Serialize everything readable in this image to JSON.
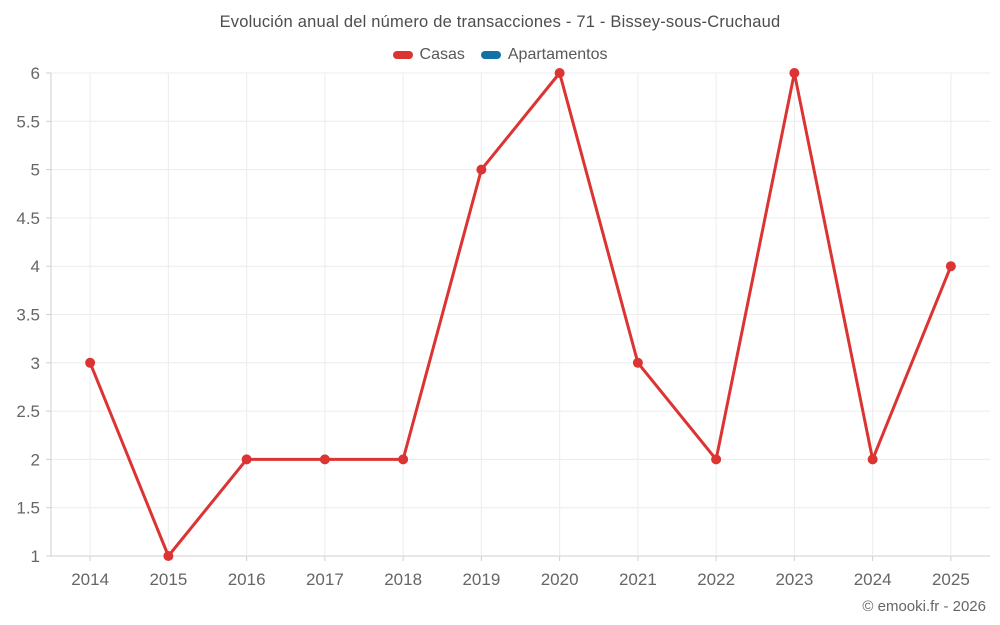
{
  "header": {
    "title": "Evolución anual del número de transacciones - 71 - Bissey-sous-Cruchaud"
  },
  "legend": {
    "items": [
      {
        "label": "Casas",
        "color": "#dc3333"
      },
      {
        "label": "Apartamentos",
        "color": "#1272a5"
      }
    ]
  },
  "footer": {
    "copyright": "© emooki.fr - 2026"
  },
  "colors": {
    "casas_line": "#dc3333",
    "apartamentos_line": "#1272a5",
    "gridline": "#ececec",
    "axis": "#cfcfcf",
    "tick_label": "#666666"
  },
  "chart_data": {
    "type": "line",
    "title": "Evolución anual del número de transacciones - 71 - Bissey-sous-Cruchaud",
    "xlabel": "",
    "ylabel": "",
    "categories": [
      "2014",
      "2015",
      "2016",
      "2017",
      "2018",
      "2019",
      "2020",
      "2021",
      "2022",
      "2023",
      "2024",
      "2025"
    ],
    "series": [
      {
        "name": "Casas",
        "color": "#dc3333",
        "values": [
          3,
          1,
          2,
          2,
          2,
          5,
          6,
          3,
          2,
          6,
          2,
          4
        ]
      },
      {
        "name": "Apartamentos",
        "color": "#1272a5",
        "values": []
      }
    ],
    "ylim": [
      1,
      6
    ],
    "ytick_step": 0.5,
    "ytick_labels": [
      "1",
      "1.5",
      "2",
      "2.5",
      "3",
      "3.5",
      "4",
      "4.5",
      "5",
      "5.5",
      "6"
    ],
    "grid": true,
    "legend_position": "top"
  }
}
